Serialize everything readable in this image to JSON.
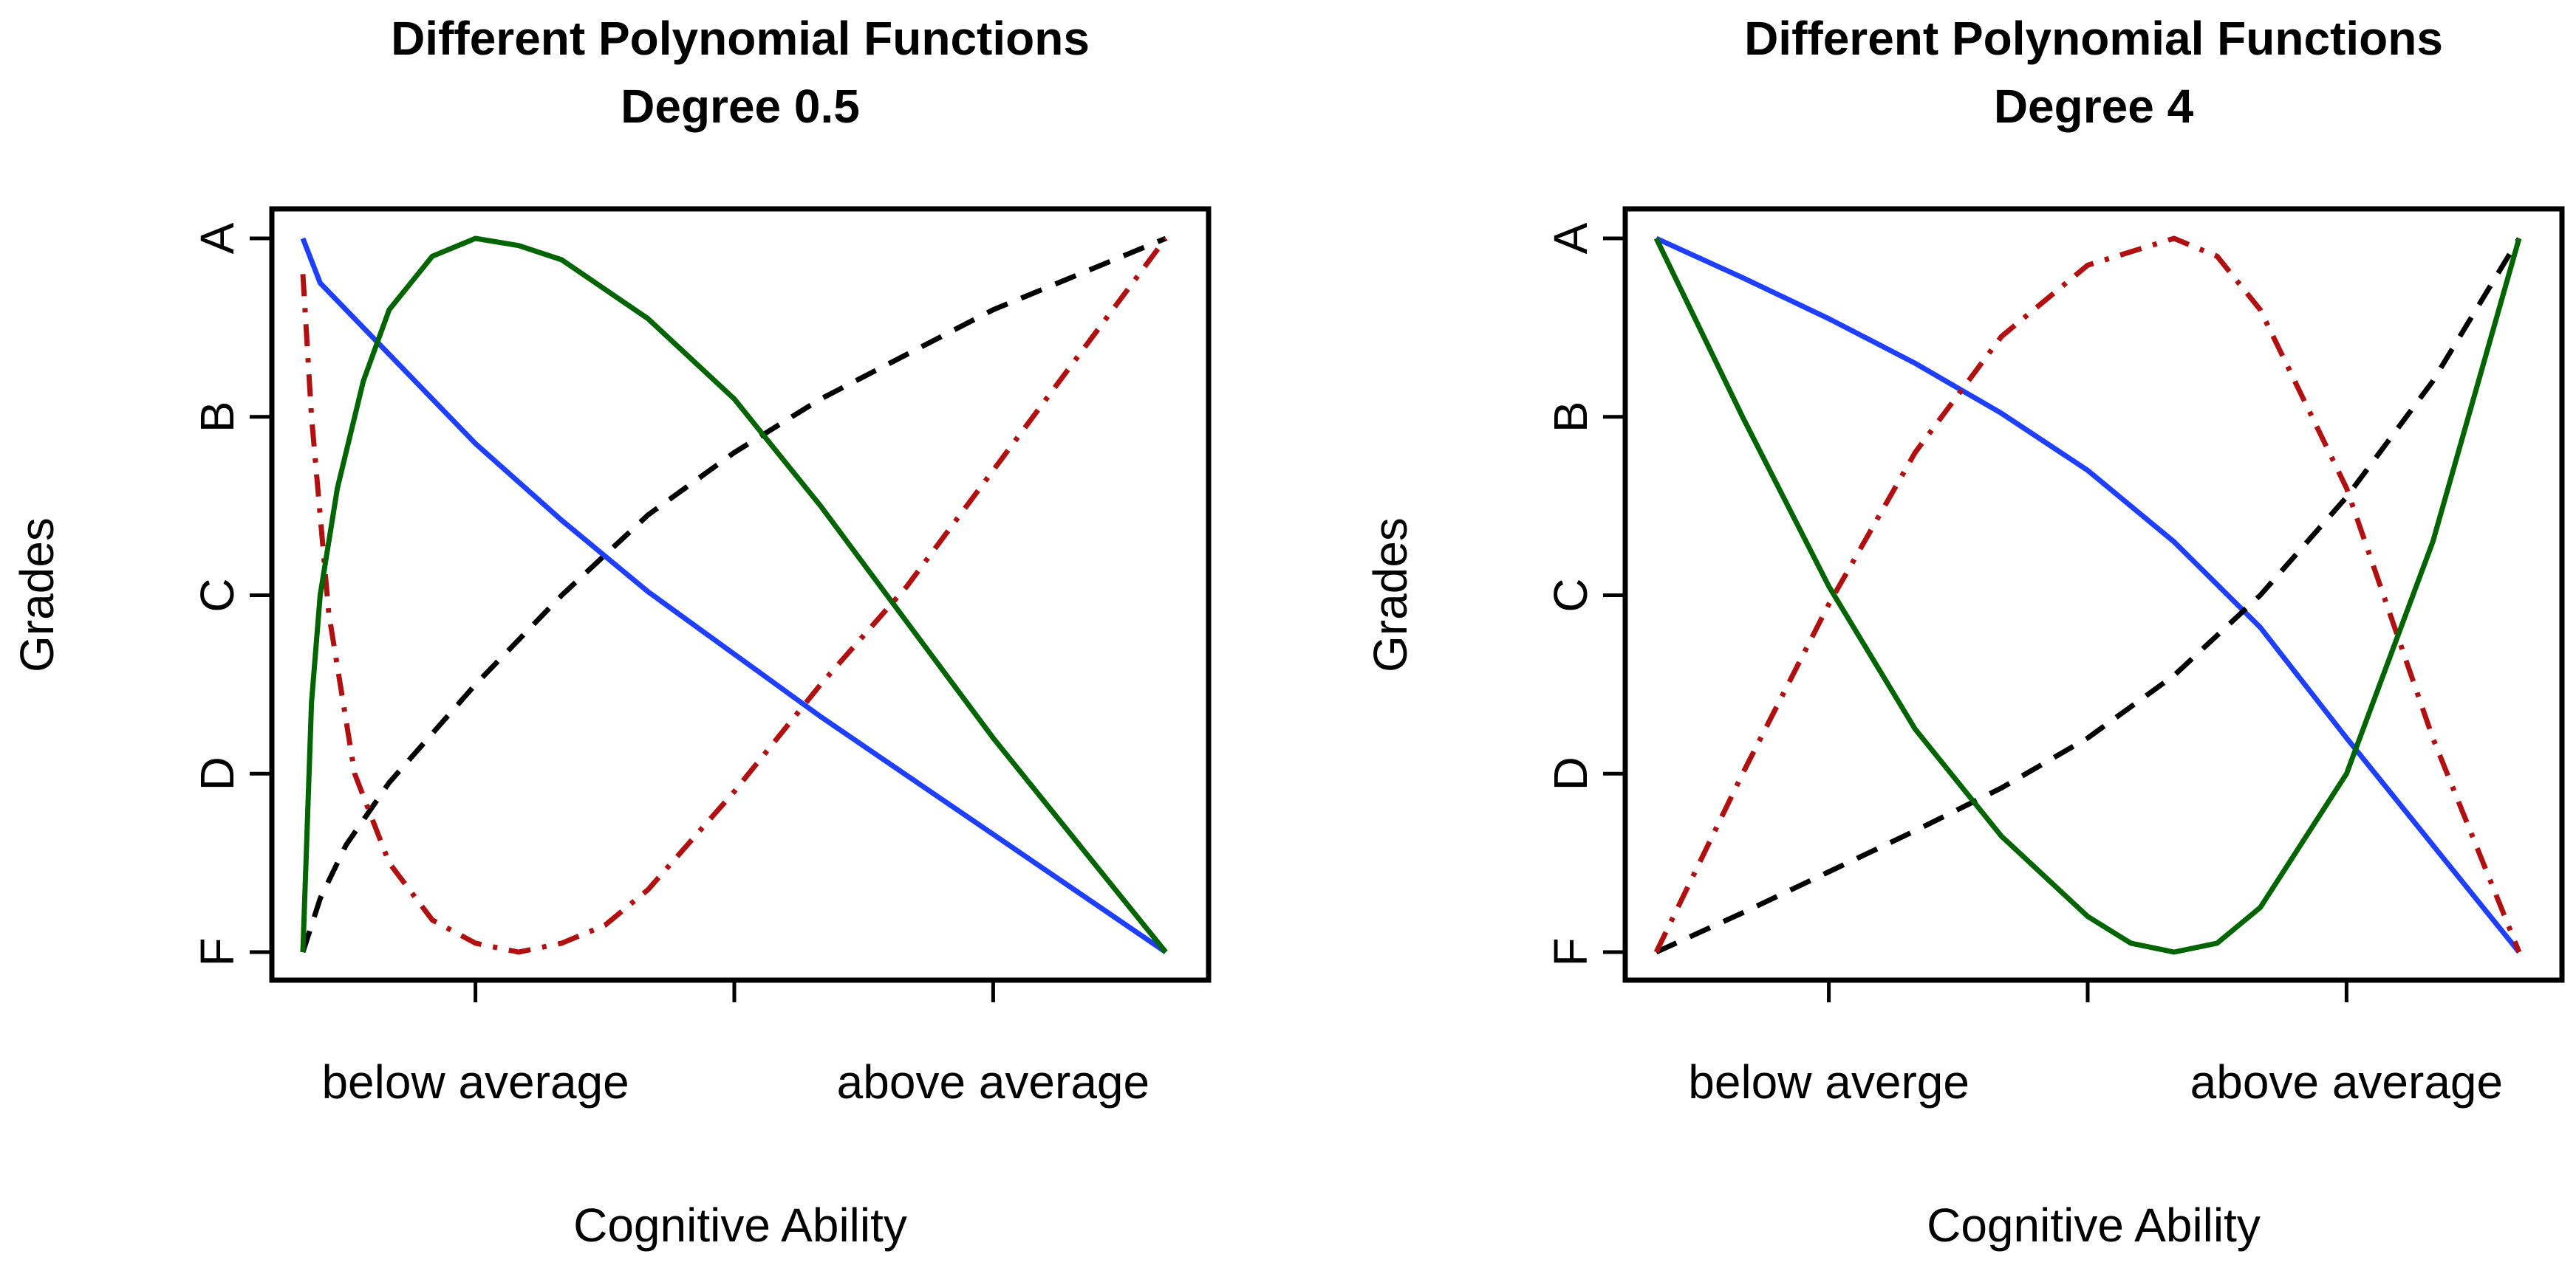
{
  "chart_data": [
    {
      "type": "line",
      "title": "Different Polynomial Functions",
      "subtitle": "Degree 0.5",
      "xlabel": "Cognitive Ability",
      "ylabel": "Grades",
      "xlim": [
        0,
        1
      ],
      "ylim": [
        0,
        4
      ],
      "xtick_values": [
        0.2,
        0.5,
        0.8
      ],
      "x_categories": [
        {
          "label": "below average",
          "x": 0.2
        },
        {
          "label": "above average",
          "x": 0.8
        }
      ],
      "ytick_values": [
        0,
        1,
        2,
        3,
        4
      ],
      "ytick_labels": [
        "F",
        "D",
        "C",
        "B",
        "A"
      ],
      "grid": false,
      "series": [
        {
          "name": "blue-solid",
          "color": "#1f3fff",
          "style": "solid",
          "x": [
            0,
            0.02,
            0.05,
            0.1,
            0.2,
            0.3,
            0.4,
            0.5,
            0.6,
            0.7,
            0.8,
            0.9,
            1.0
          ],
          "y": [
            4.0,
            3.75,
            3.6,
            3.35,
            2.85,
            2.42,
            2.02,
            1.67,
            1.32,
            0.99,
            0.66,
            0.33,
            0.0
          ]
        },
        {
          "name": "black-dashed",
          "color": "#000000",
          "style": "dashed",
          "x": [
            0,
            0.02,
            0.05,
            0.1,
            0.2,
            0.3,
            0.4,
            0.5,
            0.6,
            0.7,
            0.8,
            0.9,
            1.0
          ],
          "y": [
            0.0,
            0.3,
            0.6,
            0.95,
            1.5,
            2.0,
            2.45,
            2.8,
            3.1,
            3.35,
            3.6,
            3.8,
            4.0
          ]
        },
        {
          "name": "darkred-dashdot",
          "color": "#b01010",
          "style": "dashdot",
          "x": [
            0,
            0.01,
            0.03,
            0.06,
            0.1,
            0.15,
            0.2,
            0.25,
            0.3,
            0.35,
            0.4,
            0.5,
            0.6,
            0.7,
            0.8,
            0.9,
            1.0
          ],
          "y": [
            3.8,
            3.0,
            1.9,
            1.0,
            0.5,
            0.18,
            0.05,
            0.0,
            0.05,
            0.15,
            0.35,
            0.9,
            1.5,
            2.05,
            2.7,
            3.35,
            4.0
          ]
        },
        {
          "name": "green-solid",
          "color": "#006400",
          "style": "solid",
          "x": [
            0,
            0.01,
            0.02,
            0.04,
            0.07,
            0.1,
            0.15,
            0.2,
            0.25,
            0.3,
            0.4,
            0.5,
            0.6,
            0.7,
            0.8,
            0.9,
            1.0
          ],
          "y": [
            0.0,
            1.4,
            2.0,
            2.6,
            3.2,
            3.6,
            3.9,
            4.0,
            3.96,
            3.88,
            3.55,
            3.1,
            2.5,
            1.85,
            1.2,
            0.6,
            0.0
          ]
        }
      ]
    },
    {
      "type": "line",
      "title": "Different Polynomial Functions",
      "subtitle": "Degree 4",
      "xlabel": "Cognitive Ability",
      "ylabel": "Grades",
      "xlim": [
        0,
        1
      ],
      "ylim": [
        0,
        4
      ],
      "xtick_values": [
        0.2,
        0.5,
        0.8
      ],
      "x_categories": [
        {
          "label": "below averge",
          "x": 0.2
        },
        {
          "label": "above average",
          "x": 0.8
        }
      ],
      "ytick_values": [
        0,
        1,
        2,
        3,
        4
      ],
      "ytick_labels": [
        "F",
        "D",
        "C",
        "B",
        "A"
      ],
      "grid": false,
      "series": [
        {
          "name": "blue-solid",
          "color": "#1f3fff",
          "style": "solid",
          "x": [
            0,
            0.1,
            0.2,
            0.3,
            0.4,
            0.5,
            0.6,
            0.7,
            0.8,
            0.9,
            1.0
          ],
          "y": [
            4.0,
            3.78,
            3.55,
            3.3,
            3.02,
            2.7,
            2.3,
            1.82,
            1.2,
            0.6,
            0.0
          ]
        },
        {
          "name": "black-dashed",
          "color": "#000000",
          "style": "dashed",
          "x": [
            0,
            0.1,
            0.2,
            0.3,
            0.4,
            0.5,
            0.6,
            0.7,
            0.8,
            0.9,
            1.0
          ],
          "y": [
            0.0,
            0.22,
            0.45,
            0.68,
            0.92,
            1.2,
            1.55,
            2.0,
            2.55,
            3.2,
            4.0
          ]
        },
        {
          "name": "darkred-dashdot",
          "color": "#b01010",
          "style": "dashdot",
          "x": [
            0,
            0.1,
            0.2,
            0.3,
            0.4,
            0.5,
            0.6,
            0.65,
            0.7,
            0.8,
            0.85,
            0.9,
            0.95,
            1.0
          ],
          "y": [
            0.0,
            1.0,
            1.95,
            2.8,
            3.45,
            3.85,
            4.0,
            3.9,
            3.6,
            2.6,
            1.9,
            1.2,
            0.6,
            0.0
          ]
        },
        {
          "name": "green-solid",
          "color": "#006400",
          "style": "solid",
          "x": [
            0,
            0.1,
            0.2,
            0.3,
            0.4,
            0.5,
            0.55,
            0.6,
            0.65,
            0.7,
            0.8,
            0.9,
            1.0
          ],
          "y": [
            4.0,
            3.0,
            2.05,
            1.25,
            0.65,
            0.2,
            0.05,
            0.0,
            0.05,
            0.25,
            1.0,
            2.3,
            4.0
          ]
        }
      ]
    }
  ]
}
